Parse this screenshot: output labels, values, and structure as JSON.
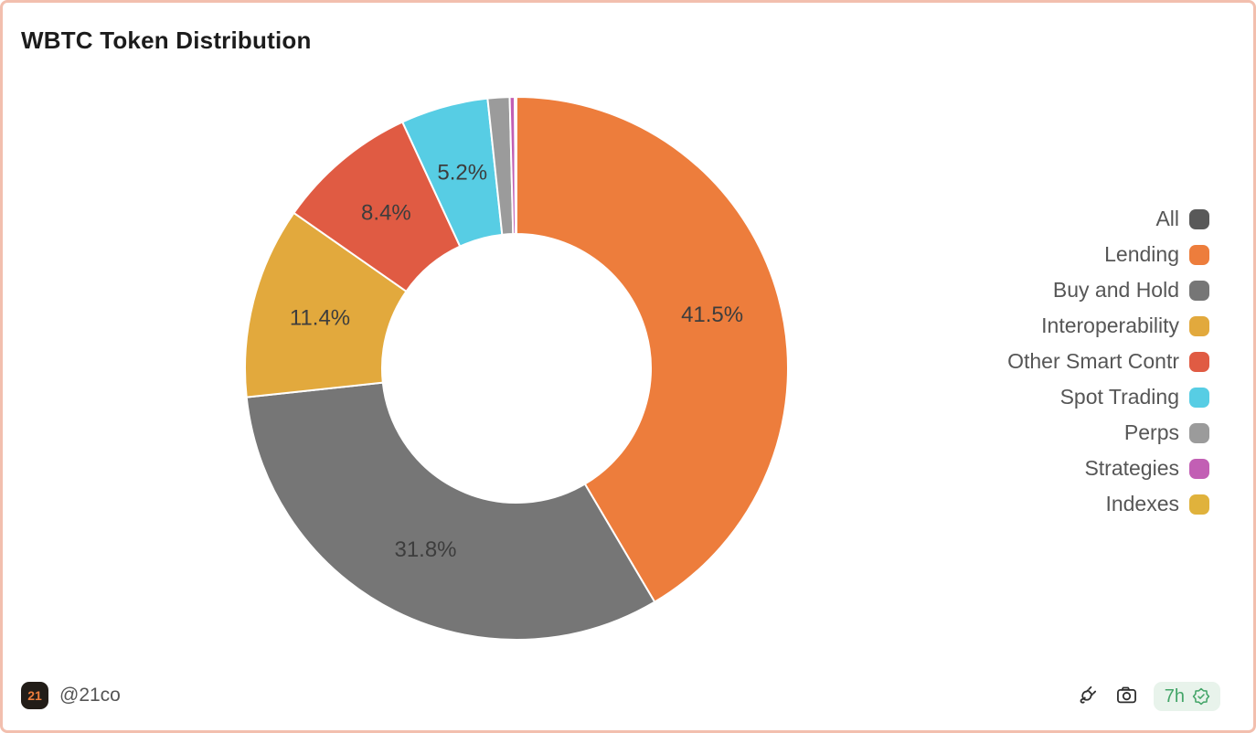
{
  "title": "WBTC Token Distribution",
  "chart_data": {
    "type": "pie",
    "title": "WBTC Token Distribution",
    "donut": true,
    "direction": "clockwise",
    "start_angle_deg": 0,
    "inner_radius_ratio": 0.495,
    "legend_position": "right",
    "segments": [
      {
        "name": "Lending",
        "value": 41.5,
        "color": "#ED7D3C",
        "label": "41.5%"
      },
      {
        "name": "Buy and Hold",
        "value": 31.8,
        "color": "#767676",
        "label": "31.8%"
      },
      {
        "name": "Interoperability",
        "value": 11.4,
        "color": "#E2A93D",
        "label": "11.4%"
      },
      {
        "name": "Other Smart Contr",
        "value": 8.4,
        "color": "#E05B43",
        "label": "8.4%"
      },
      {
        "name": "Spot Trading",
        "value": 5.2,
        "color": "#57CDE4",
        "label": "5.2%"
      },
      {
        "name": "Perps",
        "value": 1.3,
        "color": "#9B9B9B",
        "label": ""
      },
      {
        "name": "Strategies",
        "value": 0.3,
        "color": "#C25FB4",
        "label": ""
      },
      {
        "name": "Indexes",
        "value": 0.1,
        "color": "#E0B23C",
        "label": ""
      }
    ],
    "label_color": "#3D3D3D"
  },
  "legend": {
    "items": [
      {
        "label": "All",
        "color": "#595959"
      },
      {
        "label": "Lending",
        "color": "#ED7D3C"
      },
      {
        "label": "Buy and Hold",
        "color": "#767676"
      },
      {
        "label": "Interoperability",
        "color": "#E2A93D"
      },
      {
        "label": "Other Smart Contr",
        "color": "#E05B43"
      },
      {
        "label": "Spot Trading",
        "color": "#57CDE4"
      },
      {
        "label": "Perps",
        "color": "#9B9B9B"
      },
      {
        "label": "Strategies",
        "color": "#C25FB4"
      },
      {
        "label": "Indexes",
        "color": "#E0B23C"
      }
    ]
  },
  "footer": {
    "logo_text": "21",
    "handle": "@21co",
    "badge_text": "7h"
  },
  "colors": {
    "card_border": "#F2BFAE",
    "badge_green": "#43A568",
    "badge_bg": "#E8F3EB",
    "icon_stroke": "#2F2F2F"
  }
}
